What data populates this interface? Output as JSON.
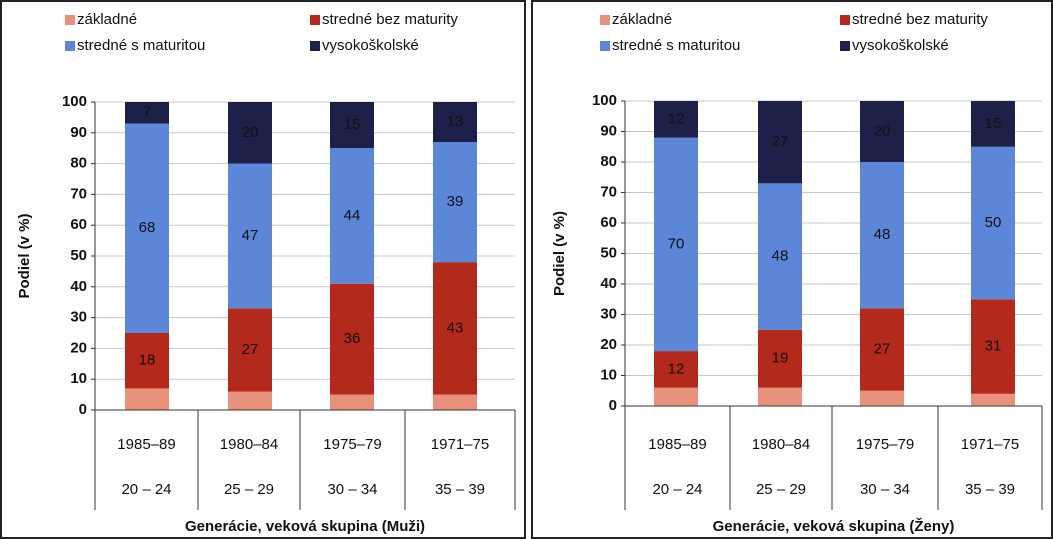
{
  "chart_data": [
    {
      "type": "stacked_bar",
      "x_label": "Generácie, veková skupina (Muži)",
      "y_label": "Podiel (v %)",
      "categories": [
        "1985–89",
        "1980–84",
        "1975–79",
        "1971–75"
      ],
      "age_groups": [
        "20 – 24",
        "25 – 29",
        "30 – 34",
        "35 – 39"
      ],
      "ylim": [
        0,
        100
      ],
      "yticks": [
        0,
        10,
        20,
        30,
        40,
        50,
        60,
        70,
        80,
        90,
        100
      ],
      "grid": true,
      "series": [
        {
          "name": "základné",
          "color": "#e8917c",
          "show_labels": false,
          "values": [
            7,
            6,
            5,
            5
          ]
        },
        {
          "name": "stredné bez maturity",
          "color": "#b3291b",
          "label_color": "#f3cfc6",
          "show_labels": true,
          "values": [
            18,
            27,
            36,
            43
          ]
        },
        {
          "name": "stredné s maturitou",
          "color": "#5c86d8",
          "label_color": "#14213f",
          "show_labels": true,
          "values": [
            68,
            47,
            44,
            39
          ]
        },
        {
          "name": "vysokoškolské",
          "color": "#1d2049",
          "label_color": "#ffffff",
          "show_labels": true,
          "values": [
            7,
            20,
            15,
            13
          ]
        }
      ]
    },
    {
      "type": "stacked_bar",
      "x_label": "Generácie, veková skupina (Ženy)",
      "y_label": "Podiel (v %)",
      "categories": [
        "1985–89",
        "1980–84",
        "1975–79",
        "1971–75"
      ],
      "age_groups": [
        "20 – 24",
        "25 – 29",
        "30 – 34",
        "35 – 39"
      ],
      "ylim": [
        0,
        100
      ],
      "yticks": [
        0,
        10,
        20,
        30,
        40,
        50,
        60,
        70,
        80,
        90,
        100
      ],
      "grid": true,
      "series": [
        {
          "name": "základné",
          "color": "#e8917c",
          "show_labels": false,
          "values": [
            6,
            6,
            5,
            4
          ]
        },
        {
          "name": "stredné bez maturity",
          "color": "#b3291b",
          "label_color": "#f3cfc6",
          "show_labels": true,
          "values": [
            12,
            19,
            27,
            31
          ]
        },
        {
          "name": "stredné s maturitou",
          "color": "#5c86d8",
          "label_color": "#14213f",
          "show_labels": true,
          "values": [
            70,
            48,
            48,
            50
          ]
        },
        {
          "name": "vysokoškolské",
          "color": "#1d2049",
          "label_color": "#ffffff",
          "show_labels": true,
          "values": [
            12,
            27,
            20,
            15
          ]
        }
      ]
    }
  ]
}
